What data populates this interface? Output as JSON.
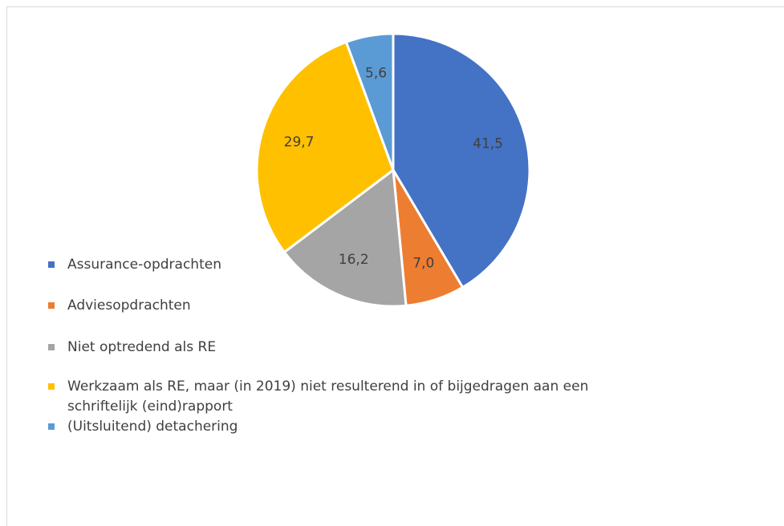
{
  "chart_data": {
    "type": "pie",
    "categories": [
      "Assurance-opdrachten",
      "Adviesopdrachten",
      "Niet optredend als RE",
      "Werkzaam als RE, maar (in 2019) niet resulterend in of bijgedragen aan een schriftelijk (eind)rapport",
      "(Uitsluitend) detachering"
    ],
    "values": [
      41.5,
      7.0,
      16.2,
      29.7,
      5.6
    ],
    "value_labels": [
      "41,5",
      "7,0",
      "16,2",
      "29,7",
      "5,6"
    ],
    "colors": [
      "#4472c4",
      "#ed7d31",
      "#a5a5a5",
      "#ffc000",
      "#5b9bd5"
    ],
    "legend": "left"
  }
}
